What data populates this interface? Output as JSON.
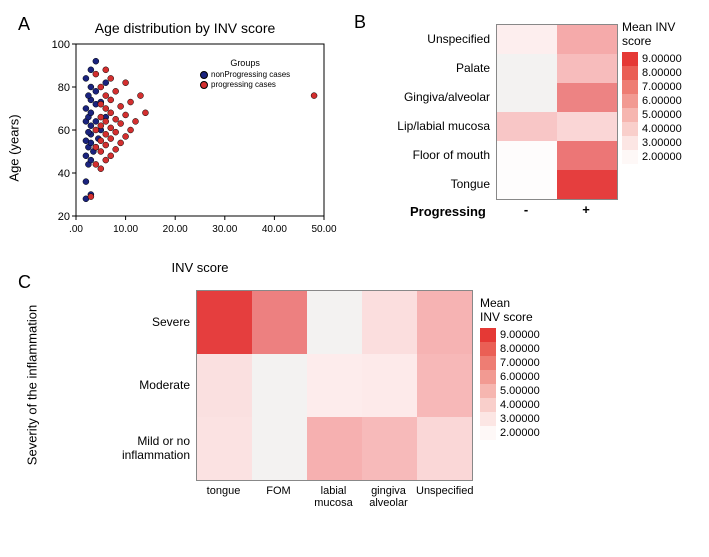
{
  "panelA": {
    "label": "A",
    "title": "Age distribution by INV score",
    "x_axis": {
      "label": "INV score",
      "min": 0,
      "max": 50,
      "ticks": [
        0,
        10,
        20,
        30,
        40,
        50
      ],
      "tick_labels": [
        ".00",
        "10.00",
        "20.00",
        "30.00",
        "40.00",
        "50.00"
      ]
    },
    "y_axis": {
      "label": "Age (years)",
      "min": 20,
      "max": 100,
      "ticks": [
        20,
        40,
        60,
        80,
        100
      ]
    },
    "legend": {
      "title": "Groups",
      "items": [
        {
          "label": "nonProgressing cases",
          "color": "#1a237e"
        },
        {
          "label": "progressing cases",
          "color": "#d32f2f"
        }
      ]
    },
    "marker_radius": 3,
    "marker_stroke": "#000000",
    "background": "#ffffff",
    "series": [
      {
        "color": "#1a237e",
        "points": [
          [
            2,
            28
          ],
          [
            3,
            30
          ],
          [
            2,
            36
          ],
          [
            2.5,
            44
          ],
          [
            3,
            46
          ],
          [
            2,
            48
          ],
          [
            3.5,
            50
          ],
          [
            2.5,
            52
          ],
          [
            4,
            52
          ],
          [
            3,
            54
          ],
          [
            2,
            55
          ],
          [
            4.5,
            56
          ],
          [
            3,
            58
          ],
          [
            2.5,
            59
          ],
          [
            5,
            60
          ],
          [
            3,
            62
          ],
          [
            2,
            64
          ],
          [
            4,
            64
          ],
          [
            2.5,
            66
          ],
          [
            6,
            66
          ],
          [
            3,
            68
          ],
          [
            2,
            70
          ],
          [
            4,
            72
          ],
          [
            5,
            73
          ],
          [
            3,
            74
          ],
          [
            2.5,
            76
          ],
          [
            4,
            78
          ],
          [
            3,
            80
          ],
          [
            6,
            82
          ],
          [
            2,
            84
          ],
          [
            3,
            88
          ],
          [
            4,
            92
          ]
        ]
      },
      {
        "color": "#d32f2f",
        "points": [
          [
            3,
            29
          ],
          [
            5,
            42
          ],
          [
            4,
            44
          ],
          [
            6,
            46
          ],
          [
            7,
            48
          ],
          [
            5,
            50
          ],
          [
            8,
            51
          ],
          [
            4,
            52
          ],
          [
            6,
            53
          ],
          [
            9,
            54
          ],
          [
            5,
            55
          ],
          [
            7,
            56
          ],
          [
            10,
            57
          ],
          [
            6,
            58
          ],
          [
            8,
            59
          ],
          [
            4,
            60
          ],
          [
            11,
            60
          ],
          [
            7,
            61
          ],
          [
            5,
            62
          ],
          [
            9,
            63
          ],
          [
            6,
            64
          ],
          [
            12,
            64
          ],
          [
            8,
            65
          ],
          [
            5,
            66
          ],
          [
            10,
            67
          ],
          [
            7,
            68
          ],
          [
            14,
            68
          ],
          [
            6,
            70
          ],
          [
            9,
            71
          ],
          [
            5,
            72
          ],
          [
            11,
            73
          ],
          [
            7,
            74
          ],
          [
            48,
            76
          ],
          [
            6,
            76
          ],
          [
            8,
            78
          ],
          [
            5,
            80
          ],
          [
            13,
            76
          ],
          [
            10,
            82
          ],
          [
            7,
            84
          ],
          [
            4,
            86
          ],
          [
            6,
            88
          ]
        ]
      }
    ]
  },
  "panelB": {
    "label": "B",
    "rows": [
      "Unspecified",
      "Palate",
      "Gingiva/alveolar",
      "Lip/labial mucosa",
      "Floor of mouth",
      "Tongue"
    ],
    "cols": [
      "-",
      "+"
    ],
    "x_title": "Progressing",
    "cell_colors": [
      [
        "#fdeeee",
        "#f5aaaa"
      ],
      [
        "#f3f2f1",
        "#f7bcbc"
      ],
      [
        "#f3f2f1",
        "#ed8383"
      ],
      [
        "#f8c6c6",
        "#fad6d6"
      ],
      [
        "#fefcfc",
        "#ec7676"
      ],
      [
        "#fefdfd",
        "#e53e3e"
      ]
    ],
    "colorbar": {
      "title": "Mean INV\nscore",
      "stops": [
        {
          "color": "#e53935",
          "label": "9.00000"
        },
        {
          "color": "#ea5f55",
          "label": "8.00000"
        },
        {
          "color": "#ee7d73",
          "label": "7.00000"
        },
        {
          "color": "#f29a92",
          "label": "6.00000"
        },
        {
          "color": "#f6b6b0",
          "label": "5.00000"
        },
        {
          "color": "#f9cfcb",
          "label": "4.00000"
        },
        {
          "color": "#fce6e4",
          "label": "3.00000"
        },
        {
          "color": "#fef8f7",
          "label": "2.00000"
        }
      ]
    }
  },
  "panelC": {
    "label": "C",
    "rows": [
      "Severe",
      "Moderate",
      "Mild or no\ninflammation"
    ],
    "cols": [
      "tongue",
      "FOM",
      "labial\nmucosa",
      "gingiva\nalveolar",
      "Unspecified"
    ],
    "y_title": "Severity of the inflammation",
    "cell_colors": [
      [
        "#e53e3e",
        "#ed8080",
        "#f3f2f1",
        "#fbdede",
        "#f6b3b3"
      ],
      [
        "#fae0e0",
        "#f3f2f1",
        "#fdecec",
        "#fdeaea",
        "#f7b8b8"
      ],
      [
        "#fbe2e2",
        "#f3f2f1",
        "#f6b0b0",
        "#f7baba",
        "#fad7d7"
      ]
    ],
    "colorbar": {
      "title": "Mean\nINV score",
      "stops": [
        {
          "color": "#e53935",
          "label": "9.00000"
        },
        {
          "color": "#ea5f55",
          "label": "8.00000"
        },
        {
          "color": "#ee7d73",
          "label": "7.00000"
        },
        {
          "color": "#f29a92",
          "label": "6.00000"
        },
        {
          "color": "#f6b6b0",
          "label": "5.00000"
        },
        {
          "color": "#f9cfcb",
          "label": "4.00000"
        },
        {
          "color": "#fce6e4",
          "label": "3.00000"
        },
        {
          "color": "#fef8f7",
          "label": "2.00000"
        }
      ]
    }
  }
}
